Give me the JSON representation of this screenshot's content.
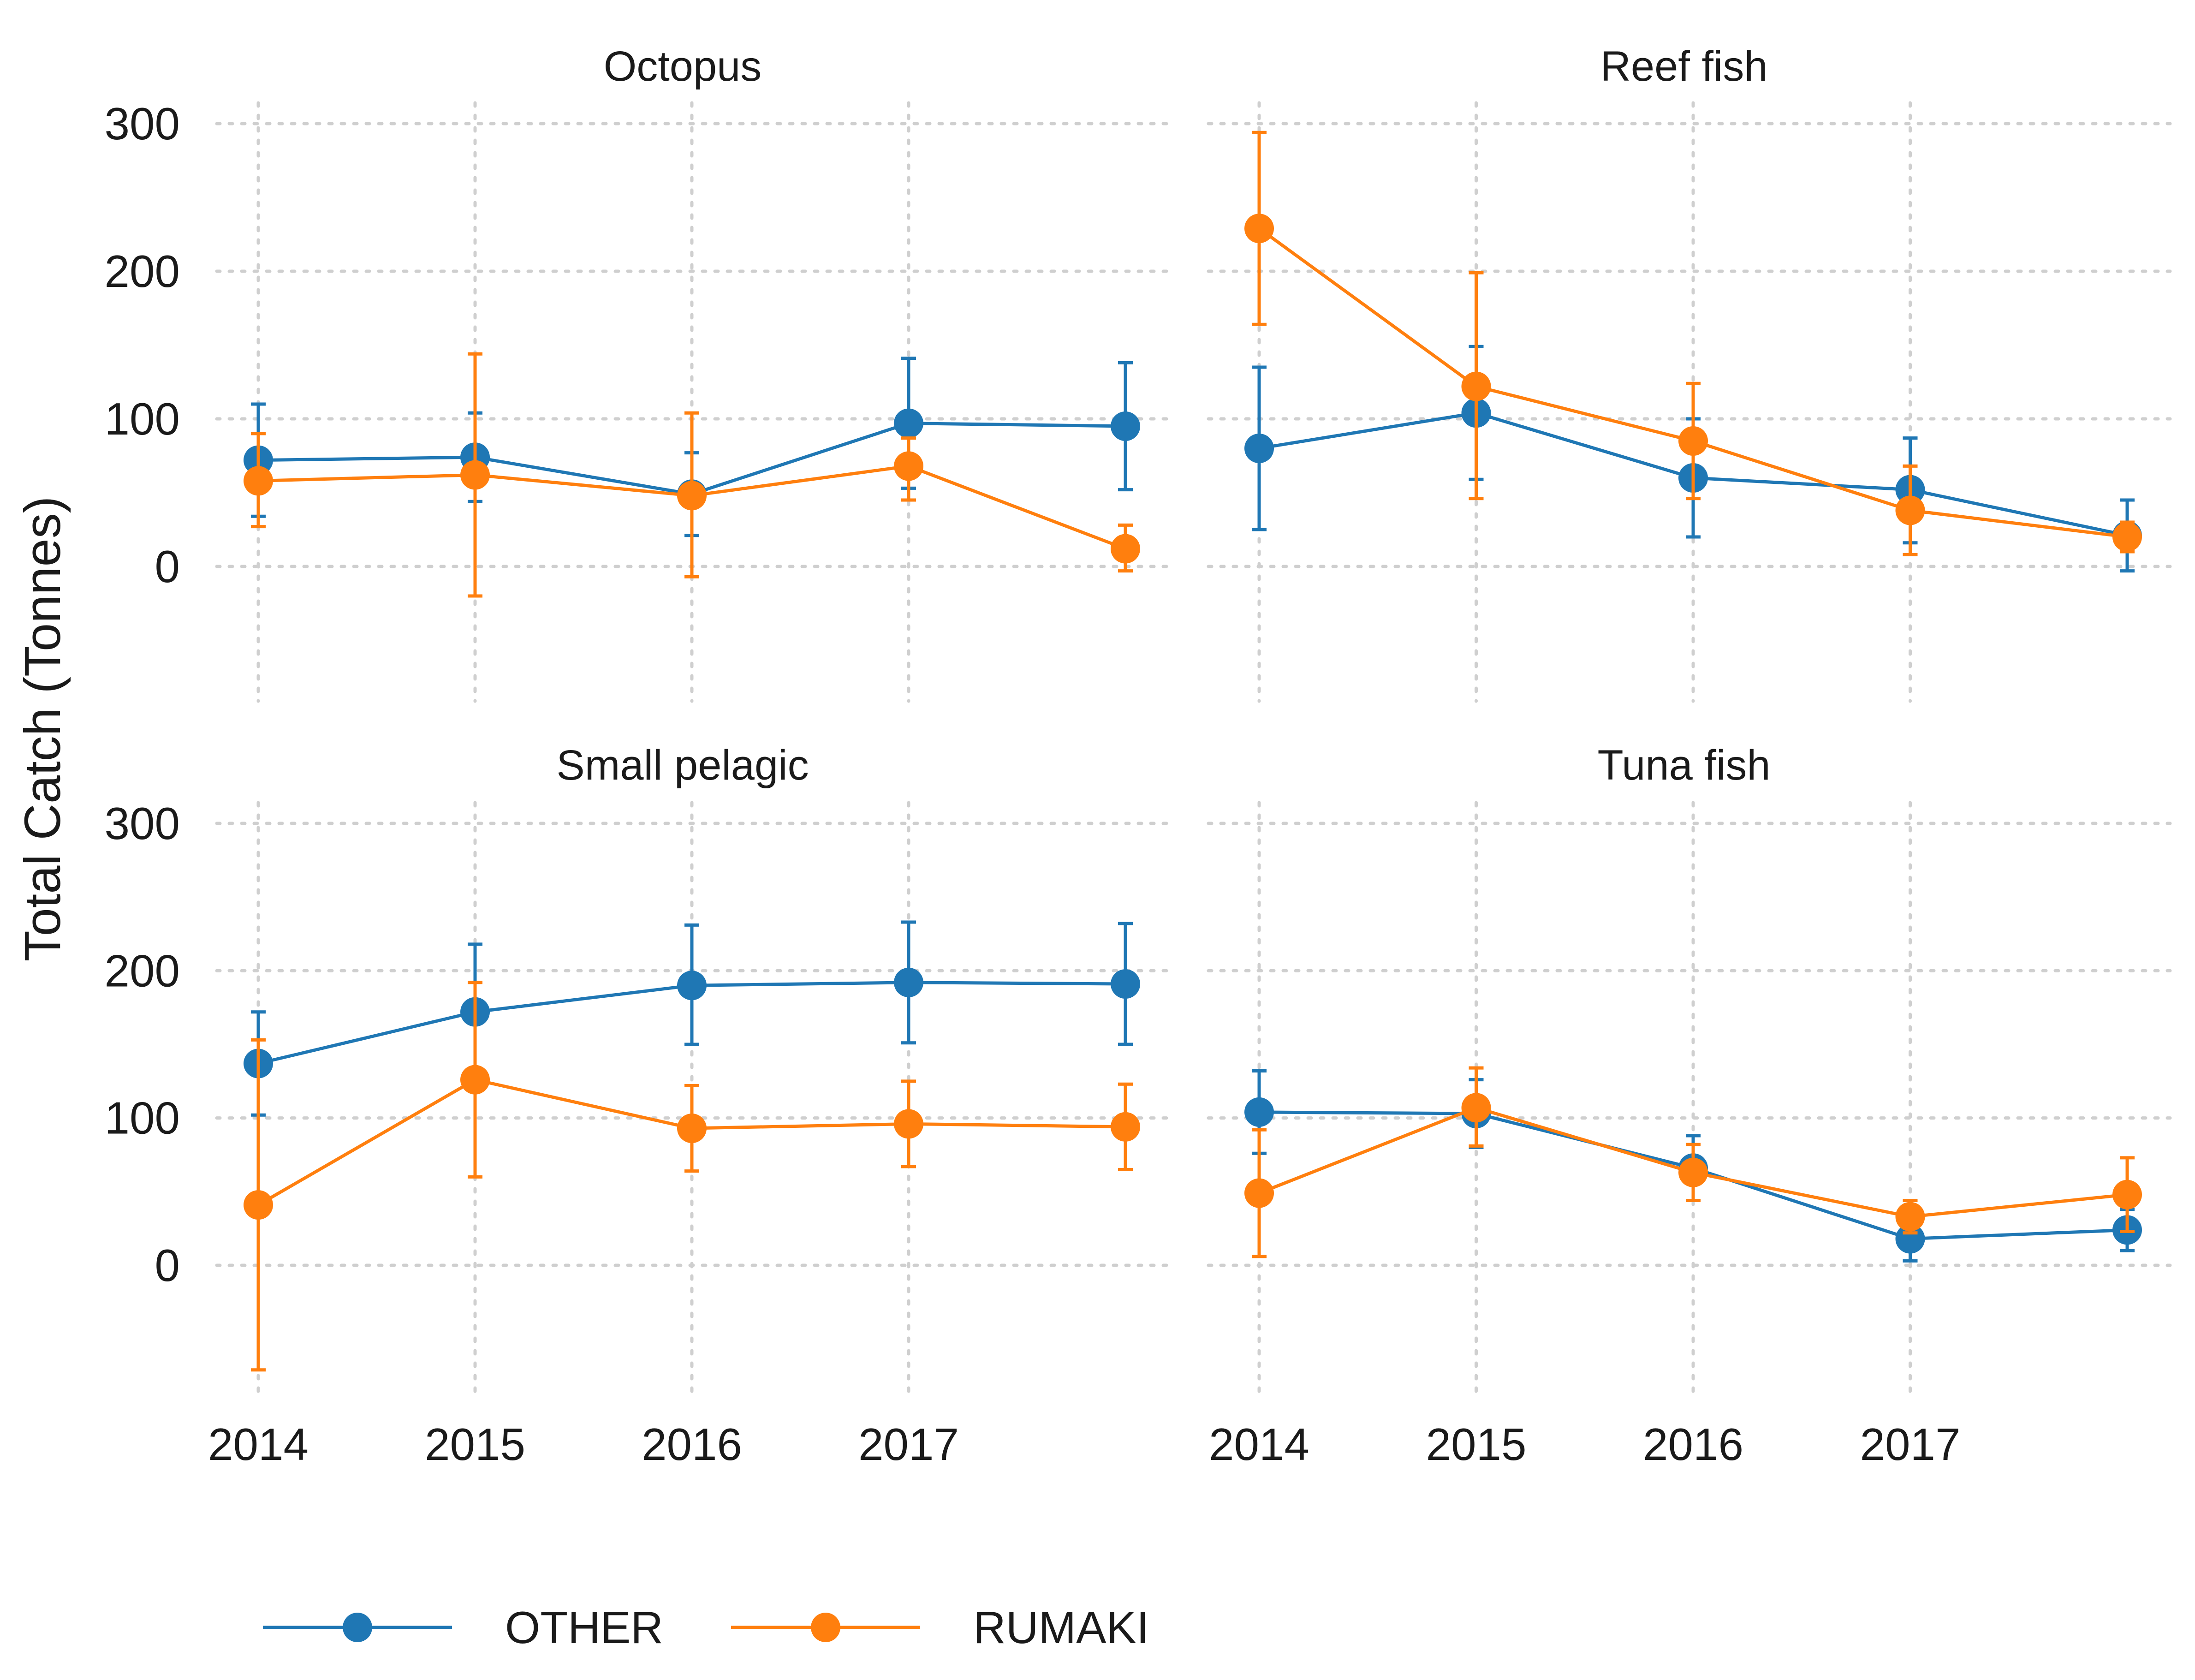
{
  "y_axis_title": "Total Catch (Tonnes)",
  "colors": {
    "OTHER": "#1f77b4",
    "RUMAKI": "#ff7f0e"
  },
  "legend": [
    {
      "name": "OTHER",
      "color": "#1f77b4"
    },
    {
      "name": "RUMAKI",
      "color": "#ff7f0e"
    }
  ],
  "chart_data": [
    {
      "type": "line",
      "title": "Octopus",
      "x_ticks": [
        "2014",
        "2015",
        "2016",
        "2017"
      ],
      "y_ticks": [
        "0",
        "100",
        "200",
        "300"
      ],
      "ylim": [
        -88,
        300
      ],
      "grid": true,
      "series": [
        {
          "name": "OTHER",
          "color": "#1f77b4",
          "x": [
            2014,
            2015,
            2016,
            2017,
            2018
          ],
          "y": [
            72,
            74,
            49,
            97,
            95
          ],
          "lower": [
            34,
            44,
            21,
            53,
            52
          ],
          "upper": [
            110,
            104,
            77,
            141,
            138
          ]
        },
        {
          "name": "RUMAKI",
          "color": "#ff7f0e",
          "x": [
            2014,
            2015,
            2016,
            2017,
            2018
          ],
          "y": [
            58,
            62,
            48,
            68,
            12
          ],
          "lower": [
            27,
            -20,
            -7,
            45,
            -3
          ],
          "upper": [
            90,
            144,
            104,
            87,
            28
          ]
        }
      ]
    },
    {
      "type": "line",
      "title": "Reef fish",
      "x_ticks": [
        "2014",
        "2015",
        "2016",
        "2017"
      ],
      "y_ticks": [],
      "ylim": [
        -88,
        300
      ],
      "grid": true,
      "series": [
        {
          "name": "OTHER",
          "color": "#1f77b4",
          "x": [
            2014,
            2015,
            2016,
            2017,
            2018
          ],
          "y": [
            80,
            104,
            60,
            52,
            21
          ],
          "lower": [
            25,
            59,
            20,
            16,
            -3
          ],
          "upper": [
            135,
            149,
            100,
            87,
            45
          ]
        },
        {
          "name": "RUMAKI",
          "color": "#ff7f0e",
          "x": [
            2014,
            2015,
            2016,
            2017,
            2018
          ],
          "y": [
            229,
            122,
            85,
            38,
            20
          ],
          "lower": [
            164,
            46,
            46,
            8,
            10
          ],
          "upper": [
            294,
            199,
            124,
            68,
            30
          ]
        }
      ]
    },
    {
      "type": "line",
      "title": "Small pelagic",
      "x_ticks": [
        "2014",
        "2015",
        "2016",
        "2017"
      ],
      "y_ticks": [
        "0",
        "100",
        "200",
        "300"
      ],
      "ylim": [
        -88,
        300
      ],
      "grid": true,
      "series": [
        {
          "name": "OTHER",
          "color": "#1f77b4",
          "x": [
            2014,
            2015,
            2016,
            2017,
            2018
          ],
          "y": [
            137,
            172,
            190,
            192,
            191
          ],
          "lower": [
            102,
            126,
            150,
            151,
            150
          ],
          "upper": [
            172,
            218,
            231,
            233,
            232
          ]
        },
        {
          "name": "RUMAKI",
          "color": "#ff7f0e",
          "x": [
            2014,
            2015,
            2016,
            2017,
            2018
          ],
          "y": [
            41,
            126,
            93,
            96,
            94
          ],
          "lower": [
            -71,
            60,
            64,
            67,
            65
          ],
          "upper": [
            153,
            192,
            122,
            125,
            123
          ]
        }
      ]
    },
    {
      "type": "line",
      "title": "Tuna fish",
      "x_ticks": [
        "2014",
        "2015",
        "2016",
        "2017"
      ],
      "y_ticks": [],
      "ylim": [
        -88,
        300
      ],
      "grid": true,
      "series": [
        {
          "name": "OTHER",
          "color": "#1f77b4",
          "x": [
            2014,
            2015,
            2016,
            2017,
            2018
          ],
          "y": [
            104,
            103,
            66,
            18,
            24
          ],
          "lower": [
            76,
            80,
            44,
            3,
            10
          ],
          "upper": [
            132,
            126,
            88,
            33,
            38
          ]
        },
        {
          "name": "RUMAKI",
          "color": "#ff7f0e",
          "x": [
            2014,
            2015,
            2016,
            2017,
            2018
          ],
          "y": [
            49,
            107,
            63,
            33,
            48
          ],
          "lower": [
            6,
            81,
            44,
            22,
            23
          ],
          "upper": [
            92,
            134,
            82,
            44,
            73
          ]
        }
      ]
    }
  ]
}
